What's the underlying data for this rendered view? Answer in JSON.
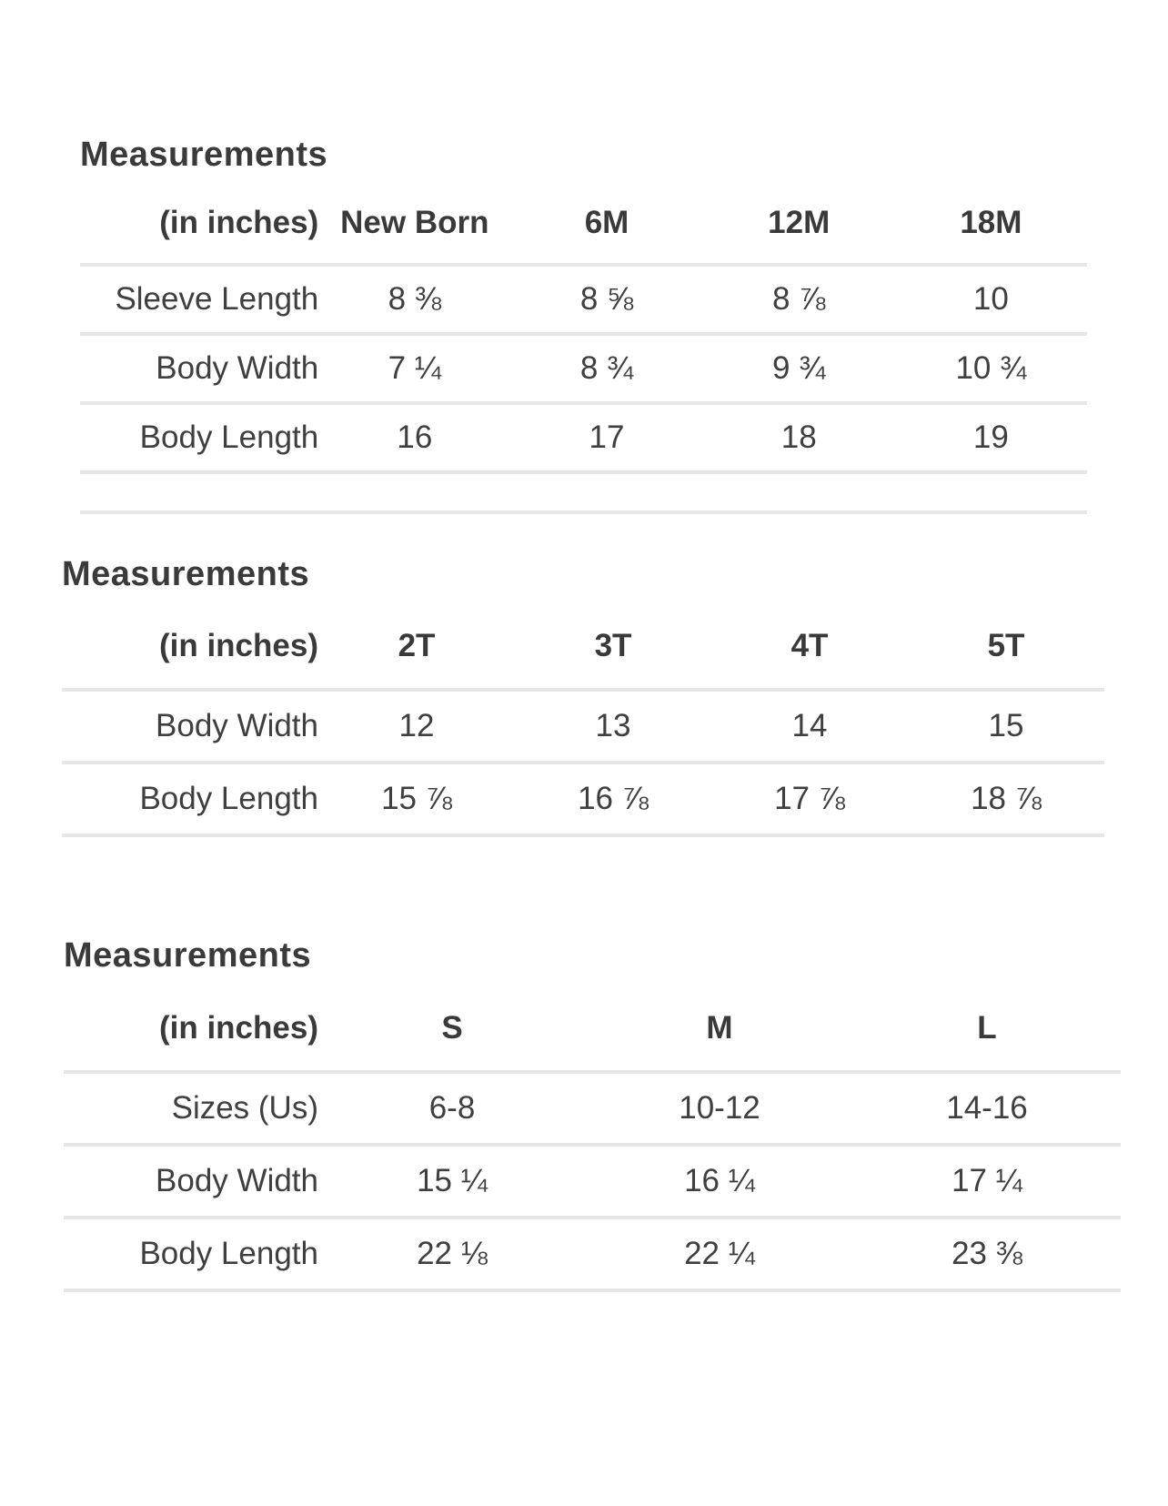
{
  "page": {
    "background_color": "#ffffff",
    "text_color": "#3f3f3f",
    "divider_color": "#e6e6e6"
  },
  "tables": [
    {
      "title": "Measurements",
      "unit_label": "(in inches)",
      "columns": [
        "New Born",
        "6M",
        "12M",
        "18M"
      ],
      "rows": [
        {
          "label": "Sleeve Length",
          "values": [
            "8 ⅜",
            "8 ⅝",
            "8 ⅞",
            "10"
          ]
        },
        {
          "label": "Body Width",
          "values": [
            "7 ¼",
            "8 ¾",
            "9 ¾",
            "10 ¾"
          ]
        },
        {
          "label": "Body Length",
          "values": [
            "16",
            "17",
            "18",
            "19"
          ]
        }
      ],
      "trailing_empty_row": true
    },
    {
      "title": "Measurements",
      "unit_label": "(in inches)",
      "columns": [
        "2T",
        "3T",
        "4T",
        "5T"
      ],
      "rows": [
        {
          "label": "Body Width",
          "values": [
            "12",
            "13",
            "14",
            "15"
          ]
        },
        {
          "label": "Body Length",
          "values": [
            "15 ⅞",
            "16 ⅞",
            "17 ⅞",
            "18 ⅞"
          ]
        }
      ]
    },
    {
      "title": "Measurements",
      "unit_label": "(in inches)",
      "columns": [
        "S",
        "M",
        "L"
      ],
      "rows": [
        {
          "label": "Sizes (Us)",
          "values": [
            "6-8",
            "10-12",
            "14-16"
          ]
        },
        {
          "label": "Body Width",
          "values": [
            "15 ¼",
            "16 ¼",
            "17 ¼"
          ]
        },
        {
          "label": "Body Length",
          "values": [
            "22 ⅛",
            "22 ¼",
            "23 ⅜"
          ]
        }
      ]
    }
  ]
}
